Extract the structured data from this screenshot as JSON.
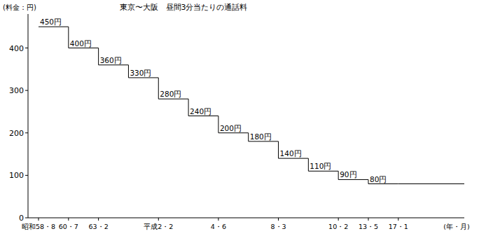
{
  "chart_data": {
    "type": "step",
    "title": "東京〜大阪　昼間3分当たりの通話料",
    "y_label": "(料金：円)",
    "x_label": "(年・月)",
    "categories": [
      "昭和58・8",
      "60・7",
      "63・2",
      null,
      "平成2・2",
      null,
      "4・6",
      null,
      "8・3",
      null,
      "10・2",
      "13・5",
      "17・1"
    ],
    "values": [
      450,
      400,
      360,
      330,
      280,
      240,
      200,
      180,
      140,
      110,
      90,
      80,
      80
    ],
    "value_labels": [
      "450円",
      "400円",
      "360円",
      "330円",
      "280円",
      "240円",
      "200円",
      "180円",
      "140円",
      "110円",
      "90円",
      "80円",
      null
    ],
    "ylim": [
      0,
      480
    ],
    "yticks": [
      0,
      100,
      200,
      300,
      400
    ],
    "data_labels": true,
    "color": "#000000"
  }
}
